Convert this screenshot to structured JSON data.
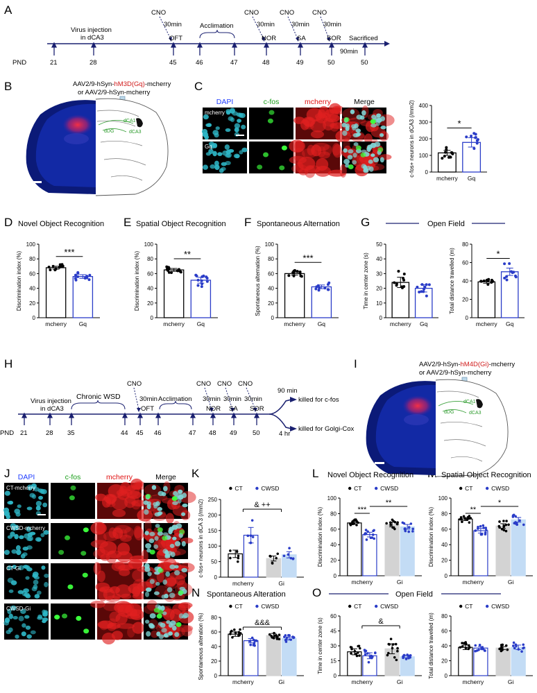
{
  "panels": {
    "A": {
      "label": "A"
    },
    "B": {
      "label": "B",
      "virus_line1_pre": "AAV2/9-hSyn-",
      "virus_line1_red": "hM3D(Gq)",
      "virus_line1_post": "-mcherry",
      "virus_line2": "or  AAV2/9-hSyn-mcherry"
    },
    "C": {
      "label": "C"
    },
    "D": {
      "label": "D"
    },
    "E": {
      "label": "E"
    },
    "F": {
      "label": "F"
    },
    "G": {
      "label": "G"
    },
    "H": {
      "label": "H"
    },
    "I": {
      "label": "I",
      "virus_line1_pre": "AAV2/9-hSyn-",
      "virus_line1_red": "hM4D(Gi)",
      "virus_line1_post": "-mcherry",
      "virus_line2": "or AAV2/9-hSyn-mcherry"
    },
    "J": {
      "label": "J"
    },
    "K": {
      "label": "K"
    },
    "L": {
      "label": "L"
    },
    "M": {
      "label": "M"
    },
    "N": {
      "label": "N"
    },
    "O": {
      "label": "O"
    }
  },
  "brain_labels": {
    "ca1": "dCA1",
    "dg": "dDG",
    "ca3": "dCA3"
  },
  "timeline_A": {
    "pnd_label": "PND",
    "ticks": [
      "21",
      "28",
      "45",
      "46",
      "47",
      "48",
      "49",
      "50",
      "50"
    ],
    "events": {
      "virus": "Virus injection",
      "virus_site": "in dCA3",
      "cno": "CNO",
      "min30": "30min",
      "min90": "90min",
      "oft": "OFT",
      "acclimation": "Acclimation",
      "nor": "NOR",
      "sa": "SA",
      "sor": "SOR",
      "sacrificed": "Sacrificed"
    }
  },
  "timeline_H": {
    "pnd_label": "PND",
    "ticks": [
      "21",
      "28",
      "35",
      "44",
      "45",
      "46",
      "47",
      "48",
      "49",
      "50"
    ],
    "events": {
      "virus": "Virus injection",
      "virus_site": "in dCA3",
      "chronic": "Chronic WSD",
      "cno": "CNO",
      "min30": "30min",
      "min90": "90 min",
      "hr4": "4 hr",
      "oft": "OFT",
      "acclimation": "Acclimation",
      "nor": "NOR",
      "sa": "SA",
      "sor": "SOR",
      "cfos": "killed for c-fos",
      "golgi": "killed for Golgi-Cox"
    }
  },
  "micro_C": {
    "channels": [
      "DAPI",
      "c-fos",
      "mcherry",
      "Merge"
    ],
    "rows": [
      "mcherry",
      "Gq"
    ],
    "channel_colors": [
      "#1e3cff",
      "#1a9e1a",
      "#e01010",
      "#000000"
    ]
  },
  "micro_J": {
    "channels": [
      "DAPI",
      "c-fos",
      "mcherry",
      "Merge"
    ],
    "rows": [
      "CT-mcherry",
      "CWSD-mcherry",
      "CT-Gi",
      "CWSD-Gi"
    ],
    "channel_colors": [
      "#1e3cff",
      "#1a9e1a",
      "#e01010",
      "#000000"
    ]
  },
  "legend": {
    "ct": "CT",
    "cwsd": "CWSD"
  },
  "titles": {
    "D": "Novel Object Recognition",
    "E": "Spatial Object Recognition",
    "F": "Spontaneous Alternation",
    "G": "Open Field",
    "L": "Novel Object Recognition",
    "M": "Spatial Object Recognition",
    "N": "Spontaneous Alteration",
    "O": "Open Field"
  },
  "chart_data": [
    {
      "id": "C",
      "type": "bar",
      "categories": [
        "mcherry",
        "Gq"
      ],
      "values": [
        115,
        178
      ],
      "errors": [
        15,
        28
      ],
      "ylabel": "c-fos+ neurons in dCA3 (/mm2)",
      "ylim": [
        0,
        400
      ],
      "yticks": [
        0,
        100,
        200,
        300,
        400
      ],
      "significance": "*",
      "sig_pairs": [
        [
          0,
          1
        ]
      ]
    },
    {
      "id": "D",
      "type": "bar",
      "categories": [
        "mcherry",
        "Gq"
      ],
      "values": [
        68,
        56
      ],
      "errors": [
        2,
        2.5
      ],
      "ylabel": "Discrimination index (%)",
      "ylim": [
        0,
        100
      ],
      "yticks": [
        0,
        20,
        40,
        60,
        80,
        100
      ],
      "significance": "***",
      "sig_pairs": [
        [
          0,
          1
        ]
      ]
    },
    {
      "id": "E",
      "type": "bar",
      "categories": [
        "mcherry",
        "Gq"
      ],
      "values": [
        65,
        51
      ],
      "errors": [
        2,
        4
      ],
      "ylabel": "Discrimination index (%)",
      "ylim": [
        0,
        100
      ],
      "yticks": [
        0,
        20,
        40,
        60,
        80,
        100
      ],
      "significance": "**",
      "sig_pairs": [
        [
          0,
          1
        ]
      ]
    },
    {
      "id": "F",
      "type": "bar",
      "categories": [
        "mcherry",
        "Gq"
      ],
      "values": [
        60,
        42
      ],
      "errors": [
        2,
        2.5
      ],
      "ylabel": "Spontaneous alternation (%)",
      "ylim": [
        0,
        100
      ],
      "yticks": [
        0,
        20,
        40,
        60,
        80,
        100
      ],
      "significance": "***",
      "sig_pairs": [
        [
          0,
          1
        ]
      ]
    },
    {
      "id": "G1",
      "type": "bar",
      "categories": [
        "mcherry",
        "Gq"
      ],
      "values": [
        24,
        20
      ],
      "errors": [
        3.5,
        2.5
      ],
      "ylabel": "Time in center zone (s)",
      "ylim": [
        0,
        50
      ],
      "yticks": [
        0,
        10,
        20,
        30,
        40,
        50
      ],
      "significance": "",
      "sig_pairs": []
    },
    {
      "id": "G2",
      "type": "bar",
      "categories": [
        "mcherry",
        "Gq"
      ],
      "values": [
        39,
        50
      ],
      "errors": [
        1.5,
        4
      ],
      "ylabel": "Total distance travelled (m)",
      "ylim": [
        0,
        80
      ],
      "yticks": [
        0,
        20,
        40,
        60,
        80
      ],
      "significance": "*",
      "sig_pairs": [
        [
          0,
          1
        ]
      ]
    },
    {
      "id": "K",
      "type": "bar",
      "categories": [
        "mcherry",
        "Gi"
      ],
      "series": [
        {
          "name": "CT",
          "values": [
            75,
            60
          ],
          "errors": [
            12,
            8
          ]
        },
        {
          "name": "CWSD",
          "values": [
            135,
            72
          ],
          "errors": [
            25,
            10
          ]
        }
      ],
      "ylabel": "c-fos+ neurons in dCA 3 (/mm2)",
      "ylim": [
        0,
        250
      ],
      "yticks": [
        0,
        50,
        100,
        150,
        200,
        250
      ],
      "annotation": "&  ++"
    },
    {
      "id": "L",
      "type": "bar",
      "categories": [
        "mcherry",
        "Gi"
      ],
      "series": [
        {
          "name": "CT",
          "values": [
            68,
            66
          ],
          "errors": [
            2,
            3
          ]
        },
        {
          "name": "CWSD",
          "values": [
            53,
            63
          ],
          "errors": [
            3,
            3
          ]
        }
      ],
      "ylabel": "Discrimination index (%)",
      "ylim": [
        0,
        100
      ],
      "yticks": [
        0,
        20,
        40,
        60,
        80,
        100
      ],
      "significance": [
        "***",
        "**"
      ]
    },
    {
      "id": "M",
      "type": "bar",
      "categories": [
        "mcherry",
        "Gi"
      ],
      "series": [
        {
          "name": "CT",
          "values": [
            73,
            64
          ],
          "errors": [
            2,
            3
          ]
        },
        {
          "name": "CWSD",
          "values": [
            58,
            72
          ],
          "errors": [
            3,
            3
          ]
        }
      ],
      "ylabel": "Discrimination index (%)",
      "ylim": [
        0,
        100
      ],
      "yticks": [
        0,
        20,
        40,
        60,
        80,
        100
      ],
      "significance": [
        "**",
        "*"
      ]
    },
    {
      "id": "N",
      "type": "bar",
      "categories": [
        "mcherry",
        "Gi"
      ],
      "series": [
        {
          "name": "CT",
          "values": [
            57,
            55
          ],
          "errors": [
            3,
            3
          ]
        },
        {
          "name": "CWSD",
          "values": [
            48,
            51
          ],
          "errors": [
            3,
            2
          ]
        }
      ],
      "ylabel": "Spontaneous alteration (%)",
      "ylim": [
        0,
        80
      ],
      "yticks": [
        0,
        20,
        40,
        60,
        80
      ],
      "annotation": "&&&"
    },
    {
      "id": "O1",
      "type": "bar",
      "categories": [
        "mcherry",
        "Gi"
      ],
      "series": [
        {
          "name": "CT",
          "values": [
            24,
            27
          ],
          "errors": [
            3,
            5
          ]
        },
        {
          "name": "CWSD",
          "values": [
            20,
            19
          ],
          "errors": [
            3,
            1
          ]
        }
      ],
      "ylabel": "Time in center zone (s)",
      "ylim": [
        0,
        60
      ],
      "yticks": [
        0,
        15,
        30,
        45,
        60
      ],
      "annotation": "&"
    },
    {
      "id": "O2",
      "type": "bar",
      "categories": [
        "mcherry",
        "Gi"
      ],
      "series": [
        {
          "name": "CT",
          "values": [
            38,
            37
          ],
          "errors": [
            3,
            2
          ]
        },
        {
          "name": "CWSD",
          "values": [
            37,
            38
          ],
          "errors": [
            2,
            3
          ]
        }
      ],
      "ylabel": "Total distance travelled (m)",
      "ylim": [
        0,
        80
      ],
      "yticks": [
        0,
        20,
        40,
        60,
        80
      ],
      "annotation": ""
    }
  ]
}
